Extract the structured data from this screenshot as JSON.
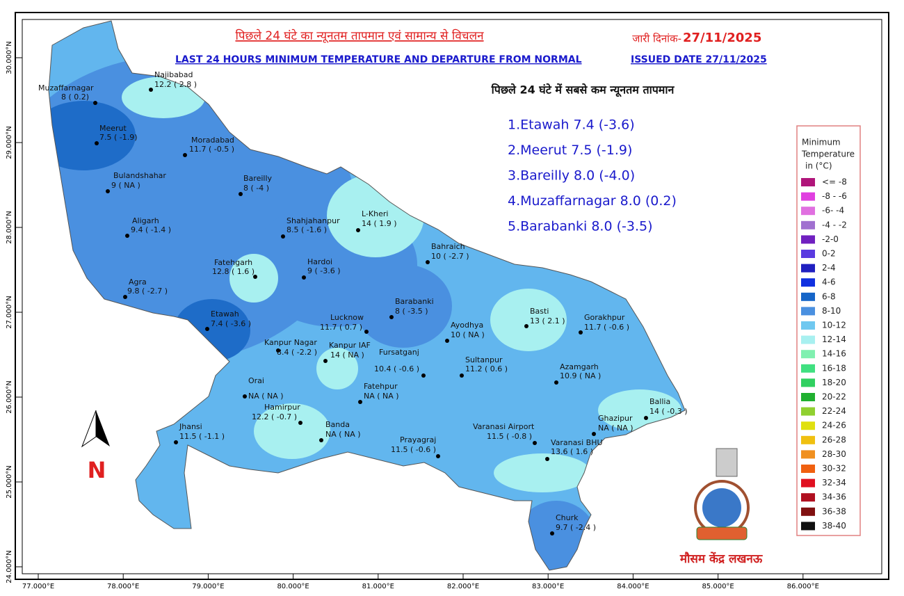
{
  "title_hi": "पिछले 24 घंटे का न्यूनतम तापमान एवं सामान्य से विचलन",
  "issued_hi": "जारी दिनांक-",
  "issued_date_hi": "27/11/2025",
  "title_en": "LAST 24 HOURS MINIMUM TEMPERATURE AND DEPARTURE FROM NORMAL",
  "issued_en": "ISSUED DATE 27/11/2025",
  "lowest_heading": "पिछले 24 घंटे में सबसे कम न्यूनतम तापमान",
  "lowest": [
    "1.Etawah 7.4 (-3.6)",
    "2.Meerut 7.5 (-1.9)",
    "3.Bareilly 8.0 (-4.0)",
    "4.Muzaffarnagar 8.0 (0.2)",
    "5.Barabanki 8.0 (-3.5)"
  ],
  "legend": {
    "title": [
      "Minimum",
      "Temperature",
      "in (°C)"
    ],
    "items": [
      {
        "label": "<= -8",
        "color": "#b0157a"
      },
      {
        "label": "-8 - -6",
        "color": "#e040e0"
      },
      {
        "label": "-6- -4",
        "color": "#e070e0"
      },
      {
        "label": "-4 - -2",
        "color": "#a070d0"
      },
      {
        "label": "-2-0",
        "color": "#7020c0"
      },
      {
        "label": "0-2",
        "color": "#5a3ae0"
      },
      {
        "label": "2-4",
        "color": "#2020c0"
      },
      {
        "label": "4-6",
        "color": "#1030e0"
      },
      {
        "label": "6-8",
        "color": "#1565c8"
      },
      {
        "label": "8-10",
        "color": "#4a90e0"
      },
      {
        "label": "10-12",
        "color": "#70c8f0"
      },
      {
        "label": "12-14",
        "color": "#a8f0f0"
      },
      {
        "label": "14-16",
        "color": "#80f0b0"
      },
      {
        "label": "16-18",
        "color": "#40e080"
      },
      {
        "label": "18-20",
        "color": "#30d060"
      },
      {
        "label": "20-22",
        "color": "#20b030"
      },
      {
        "label": "22-24",
        "color": "#90d030"
      },
      {
        "label": "24-26",
        "color": "#e0e010"
      },
      {
        "label": "26-28",
        "color": "#f0c010"
      },
      {
        "label": "28-30",
        "color": "#f09020"
      },
      {
        "label": "30-32",
        "color": "#f06010"
      },
      {
        "label": "32-34",
        "color": "#e01020"
      },
      {
        "label": "34-36",
        "color": "#b01020"
      },
      {
        "label": "36-38",
        "color": "#801010"
      },
      {
        "label": "38-40",
        "color": "#101010"
      }
    ]
  },
  "lon_ticks": [
    {
      "value": 77,
      "label": "77.000°E"
    },
    {
      "value": 78,
      "label": "78.000°E"
    },
    {
      "value": 79,
      "label": "79.000°E"
    },
    {
      "value": 80,
      "label": "80.000°E"
    },
    {
      "value": 81,
      "label": "81.000°E"
    },
    {
      "value": 82,
      "label": "82.000°E"
    },
    {
      "value": 83,
      "label": "83.000°E"
    },
    {
      "value": 84,
      "label": "84.000°E"
    },
    {
      "value": 85,
      "label": "85.000°E"
    },
    {
      "value": 86,
      "label": "86.000°E"
    }
  ],
  "lat_ticks": [
    {
      "value": 24,
      "label": "24.000°N"
    },
    {
      "value": 25,
      "label": "25.000°N"
    },
    {
      "value": 26,
      "label": "26.000°N"
    },
    {
      "value": 27,
      "label": "27.000°N"
    },
    {
      "value": 28,
      "label": "28.000°N"
    },
    {
      "value": 29,
      "label": "29.000°N"
    },
    {
      "value": 30,
      "label": "30.000°N"
    }
  ],
  "stations": [
    {
      "name": "Najibabad",
      "reading": "12.2 ( 2.8 )"
    },
    {
      "name": "Muzaffarnagar",
      "reading": "8 ( 0.2)"
    },
    {
      "name": "Meerut",
      "reading": "7.5 ( -1.9)"
    },
    {
      "name": "Moradabad",
      "reading": "11.7 ( -0.5 )"
    },
    {
      "name": "Bulandshahar",
      "reading": "9 ( NA )"
    },
    {
      "name": "Bareilly",
      "reading": "8 ( -4 )"
    },
    {
      "name": "Aligarh",
      "reading": "9.4 ( -1.4 )"
    },
    {
      "name": "Shahjahanpur",
      "reading": "8.5 ( -1.6 )"
    },
    {
      "name": "L-Kheri",
      "reading": "14 ( 1.9 )"
    },
    {
      "name": "Bahraich",
      "reading": "10 ( -2.7 )"
    },
    {
      "name": "Fatehgarh",
      "reading": "12.8 ( 1.6 )"
    },
    {
      "name": "Hardoi",
      "reading": "9 ( -3.6 )"
    },
    {
      "name": "Agra",
      "reading": "9.8 ( -2.7 )"
    },
    {
      "name": "Barabanki",
      "reading": "8 ( -3.5 )"
    },
    {
      "name": "Lucknow",
      "reading": "11.7 ( 0.7 )"
    },
    {
      "name": "Basti",
      "reading": "13 ( 2.1 )"
    },
    {
      "name": "Gorakhpur",
      "reading": "11.7 ( -0.6 )"
    },
    {
      "name": "Etawah",
      "reading": "7.4 ( -3.6 )"
    },
    {
      "name": "Ayodhya",
      "reading": "10 ( NA )"
    },
    {
      "name": "Kanpur Nagar",
      "reading": "8.4 ( -2.2 )"
    },
    {
      "name": "Kanpur IAF",
      "reading": "14 ( NA )"
    },
    {
      "name": "Fursatganj",
      "reading": "10.4 ( -0.6 )"
    },
    {
      "name": "Sultanpur",
      "reading": "11.2 ( 0.6 )"
    },
    {
      "name": "Azamgarh",
      "reading": "10.9 ( NA )"
    },
    {
      "name": "Orai",
      "reading": "NA ( NA )"
    },
    {
      "name": "Fatehpur",
      "reading": "NA ( NA )"
    },
    {
      "name": "Ballia",
      "reading": "14 ( -0.3 )"
    },
    {
      "name": "Hamirpur",
      "reading": "12.2 ( -0.7 )"
    },
    {
      "name": "Jhansi",
      "reading": "11.5 ( -1.1 )"
    },
    {
      "name": "Banda",
      "reading": "NA ( NA )"
    },
    {
      "name": "Ghazipur",
      "reading": "NA ( NA )"
    },
    {
      "name": "Varanasi Airport",
      "reading": "11.5 ( -0.8 )"
    },
    {
      "name": "Prayagraj",
      "reading": "11.5 ( -0.6 )"
    },
    {
      "name": "Varanasi BHU",
      "reading": "13.6 ( 1.6 )"
    },
    {
      "name": "Churk",
      "reading": "9.7 ( -2.4 )"
    }
  ],
  "north": "N",
  "office": "मौसम केंद्र लखनऊ"
}
